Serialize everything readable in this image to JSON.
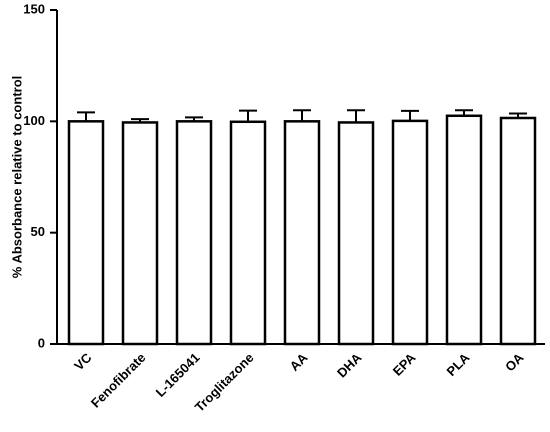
{
  "chart_data": {
    "type": "bar",
    "ylabel": "% Absorbance relative to control",
    "categories": [
      "VC",
      "Fenofibrate",
      "L-165041",
      "Troglitazone",
      "AA",
      "DHA",
      "EPA",
      "PLA",
      "OA"
    ],
    "values": [
      100,
      99.5,
      100,
      99.8,
      100,
      99.5,
      100.2,
      102.5,
      101.5
    ],
    "errors": [
      4,
      1.5,
      1.8,
      5,
      5,
      5.5,
      4.5,
      2.5,
      2
    ],
    "color": "#ffffff",
    "ylim": [
      0,
      150
    ],
    "yticks": [
      0,
      50,
      100,
      150
    ],
    "grid": false
  }
}
